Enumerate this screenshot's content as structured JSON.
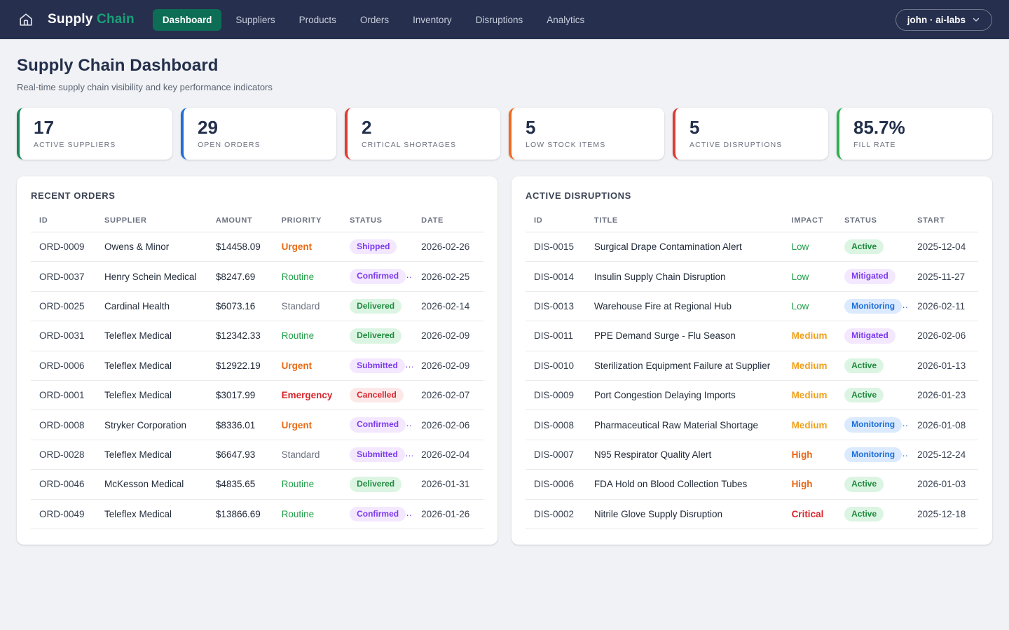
{
  "nav": {
    "logo": {
      "part1": "Supply",
      "part2": "Chain"
    },
    "items": [
      {
        "label": "Dashboard",
        "active": true
      },
      {
        "label": "Suppliers",
        "active": false
      },
      {
        "label": "Products",
        "active": false
      },
      {
        "label": "Orders",
        "active": false
      },
      {
        "label": "Inventory",
        "active": false
      },
      {
        "label": "Disruptions",
        "active": false
      },
      {
        "label": "Analytics",
        "active": false
      }
    ],
    "user_menu": {
      "label": "john · ai-labs"
    }
  },
  "page": {
    "title": "Supply Chain Dashboard",
    "subtitle": "Real-time supply chain visibility and key performance indicators"
  },
  "kpis": [
    {
      "value": "17",
      "label": "ACTIVE SUPPLIERS",
      "accent": "#158a55"
    },
    {
      "value": "29",
      "label": "OPEN ORDERS",
      "accent": "#1f6fd6"
    },
    {
      "value": "2",
      "label": "CRITICAL SHORTAGES",
      "accent": "#e23b31"
    },
    {
      "value": "5",
      "label": "LOW STOCK ITEMS",
      "accent": "#f2691e"
    },
    {
      "value": "5",
      "label": "ACTIVE DISRUPTIONS",
      "accent": "#e23b31"
    },
    {
      "value": "85.7%",
      "label": "FILL RATE",
      "accent": "#2eb24e"
    }
  ],
  "orders_panel": {
    "title": "RECENT ORDERS",
    "columns": [
      "ID",
      "SUPPLIER",
      "AMOUNT",
      "PRIORITY",
      "STATUS",
      "DATE"
    ],
    "col_widths": [
      "14.4%",
      "24.6%",
      "14.5%",
      "15.1%",
      "15.8%",
      "15.6%"
    ],
    "rows": [
      {
        "id": "ORD-0009",
        "supplier": "Owens & Minor",
        "amount": "$14458.09",
        "priority": "Urgent",
        "status": "Shipped",
        "date": "2026-02-26"
      },
      {
        "id": "ORD-0037",
        "supplier": "Henry Schein Medical",
        "amount": "$8247.69",
        "priority": "Routine",
        "status": "Confirmed",
        "date": "2026-02-25"
      },
      {
        "id": "ORD-0025",
        "supplier": "Cardinal Health",
        "amount": "$6073.16",
        "priority": "Standard",
        "status": "Delivered",
        "date": "2026-02-14"
      },
      {
        "id": "ORD-0031",
        "supplier": "Teleflex Medical",
        "amount": "$12342.33",
        "priority": "Routine",
        "status": "Delivered",
        "date": "2026-02-09"
      },
      {
        "id": "ORD-0006",
        "supplier": "Teleflex Medical",
        "amount": "$12922.19",
        "priority": "Urgent",
        "status": "Submitted",
        "date": "2026-02-09"
      },
      {
        "id": "ORD-0001",
        "supplier": "Teleflex Medical",
        "amount": "$3017.99",
        "priority": "Emergency",
        "status": "Cancelled",
        "date": "2026-02-07"
      },
      {
        "id": "ORD-0008",
        "supplier": "Stryker Corporation",
        "amount": "$8336.01",
        "priority": "Urgent",
        "status": "Confirmed",
        "date": "2026-02-06"
      },
      {
        "id": "ORD-0028",
        "supplier": "Teleflex Medical",
        "amount": "$6647.93",
        "priority": "Standard",
        "status": "Submitted",
        "date": "2026-02-04"
      },
      {
        "id": "ORD-0046",
        "supplier": "McKesson Medical",
        "amount": "$4835.65",
        "priority": "Routine",
        "status": "Delivered",
        "date": "2026-01-31"
      },
      {
        "id": "ORD-0049",
        "supplier": "Teleflex Medical",
        "amount": "$13866.69",
        "priority": "Routine",
        "status": "Confirmed",
        "date": "2026-01-26"
      }
    ]
  },
  "disruptions_panel": {
    "title": "ACTIVE DISRUPTIONS",
    "columns": [
      "ID",
      "TITLE",
      "IMPACT",
      "STATUS",
      "START"
    ],
    "col_widths": [
      "13.3%",
      "43.6%",
      "11.7%",
      "16.1%",
      "15.3%"
    ],
    "rows": [
      {
        "id": "DIS-0015",
        "title": "Surgical Drape Contamination Alert",
        "impact": "Low",
        "status": "Active",
        "date": "2025-12-04"
      },
      {
        "id": "DIS-0014",
        "title": "Insulin Supply Chain Disruption",
        "impact": "Low",
        "status": "Mitigated",
        "date": "2025-11-27"
      },
      {
        "id": "DIS-0013",
        "title": "Warehouse Fire at Regional Hub",
        "impact": "Low",
        "status": "Monitoring",
        "date": "2026-02-11"
      },
      {
        "id": "DIS-0011",
        "title": "PPE Demand Surge - Flu Season",
        "impact": "Medium",
        "status": "Mitigated",
        "date": "2026-02-06"
      },
      {
        "id": "DIS-0010",
        "title": "Sterilization Equipment Failure at Supplier",
        "impact": "Medium",
        "status": "Active",
        "date": "2026-01-13"
      },
      {
        "id": "DIS-0009",
        "title": "Port Congestion Delaying Imports",
        "impact": "Medium",
        "status": "Active",
        "date": "2026-01-23"
      },
      {
        "id": "DIS-0008",
        "title": "Pharmaceutical Raw Material Shortage",
        "impact": "Medium",
        "status": "Monitoring",
        "date": "2026-01-08"
      },
      {
        "id": "DIS-0007",
        "title": "N95 Respirator Quality Alert",
        "impact": "High",
        "status": "Monitoring",
        "date": "2025-12-24"
      },
      {
        "id": "DIS-0006",
        "title": "FDA Hold on Blood Collection Tubes",
        "impact": "High",
        "status": "Active",
        "date": "2026-01-03"
      },
      {
        "id": "DIS-0002",
        "title": "Nitrile Glove Supply Disruption",
        "impact": "Critical",
        "status": "Active",
        "date": "2025-12-18"
      }
    ]
  },
  "colors": {
    "nav_bg": "#262f4d",
    "nav_active_bg": "#0d6e55",
    "brand_accent": "#18a078",
    "priority": {
      "urgent": {
        "color": "#ea6a13",
        "bold": true
      },
      "routine": {
        "color": "#22a04a",
        "bold": false
      },
      "standard": {
        "color": "#6b7280",
        "bold": false
      },
      "emergency": {
        "color": "#d7262c",
        "bold": true
      }
    },
    "impact": {
      "low": {
        "color": "#22a04a",
        "bold": false
      },
      "medium": {
        "color": "#f0a11c",
        "bold": true
      },
      "high": {
        "color": "#ea6413",
        "bold": true
      },
      "critical": {
        "color": "#d7262c",
        "bold": true
      }
    },
    "badges": {
      "shipped": {
        "fg": "#7c3aed",
        "bg": "#f3e8ff"
      },
      "confirmed": {
        "fg": "#7c3aed",
        "bg": "#f3e8ff"
      },
      "submitted": {
        "fg": "#7c3aed",
        "bg": "#f3e8ff"
      },
      "mitigated": {
        "fg": "#7c3aed",
        "bg": "#f3e8ff"
      },
      "delivered": {
        "fg": "#1f8a3d",
        "bg": "#dcf5e3"
      },
      "active": {
        "fg": "#1f8a3d",
        "bg": "#dcf5e3"
      },
      "cancelled": {
        "fg": "#d7262c",
        "bg": "#fde8e8"
      },
      "monitoring": {
        "fg": "#1d6ed8",
        "bg": "#dbeafe"
      }
    }
  }
}
